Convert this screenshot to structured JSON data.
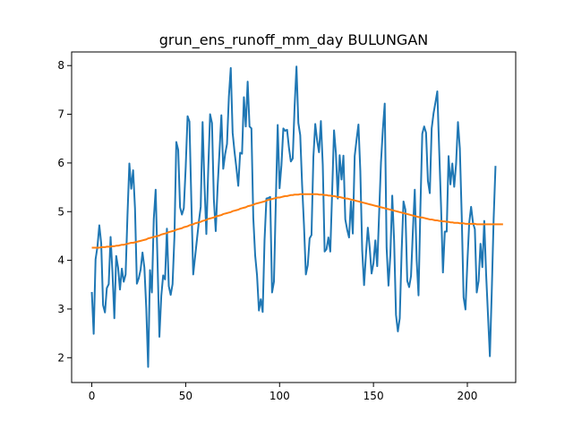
{
  "chart_data": {
    "type": "line",
    "title": "grun_ens_runoff_mm_day BULUNGAN",
    "xlabel": "",
    "ylabel": "",
    "xlim": [
      -10.75,
      225.75
    ],
    "ylim": [
      1.49,
      8.28
    ],
    "x_ticks": [
      0,
      50,
      100,
      150,
      200
    ],
    "y_ticks": [
      2,
      3,
      4,
      5,
      6,
      7,
      8
    ],
    "grid": false,
    "series": [
      {
        "color": "#1f77b4",
        "values": [
          3.35,
          2.49,
          4.02,
          4.28,
          4.72,
          4.35,
          3.08,
          2.93,
          3.43,
          3.51,
          4.48,
          3.75,
          2.81,
          4.09,
          3.85,
          3.4,
          3.83,
          3.56,
          3.71,
          4.93,
          5.99,
          5.47,
          5.85,
          5.07,
          3.52,
          3.63,
          3.81,
          4.16,
          3.85,
          3.02,
          1.81,
          3.8,
          3.34,
          4.85,
          5.45,
          3.97,
          2.43,
          3.27,
          3.69,
          3.61,
          4.65,
          3.47,
          3.29,
          3.51,
          4.48,
          6.43,
          6.27,
          5.09,
          4.94,
          5.07,
          5.91,
          6.96,
          6.85,
          5.23,
          3.71,
          4.07,
          4.43,
          4.79,
          5.1,
          6.84,
          5.55,
          4.54,
          5.86,
          7.0,
          6.82,
          5.25,
          4.6,
          5.51,
          6.24,
          6.98,
          5.88,
          6.18,
          6.39,
          7.36,
          7.95,
          6.62,
          6.23,
          5.9,
          5.53,
          6.21,
          6.19,
          7.35,
          6.75,
          7.67,
          6.75,
          6.71,
          4.87,
          4.1,
          3.69,
          2.97,
          3.2,
          2.94,
          4.42,
          5.27,
          5.28,
          5.3,
          3.34,
          3.56,
          5.21,
          6.78,
          5.48,
          5.96,
          6.71,
          6.66,
          6.68,
          6.31,
          6.03,
          6.09,
          7.16,
          7.98,
          6.82,
          6.57,
          5.55,
          4.72,
          3.71,
          3.9,
          4.45,
          4.52,
          6.12,
          6.8,
          6.46,
          6.22,
          6.86,
          5.96,
          4.18,
          4.23,
          4.47,
          4.18,
          5.4,
          6.67,
          6.2,
          5.27,
          6.16,
          5.66,
          6.15,
          4.84,
          4.63,
          4.47,
          5.21,
          4.55,
          6.14,
          6.48,
          6.79,
          5.84,
          4.2,
          3.49,
          4.12,
          4.67,
          4.26,
          3.73,
          3.94,
          4.41,
          3.88,
          4.94,
          6.01,
          6.69,
          7.22,
          4.26,
          3.48,
          4.11,
          5.33,
          4.4,
          2.88,
          2.54,
          2.81,
          4.18,
          5.21,
          5.04,
          3.58,
          3.45,
          3.68,
          4.61,
          5.45,
          4.01,
          3.28,
          5.08,
          6.6,
          6.75,
          6.62,
          5.63,
          5.38,
          6.71,
          7.02,
          7.24,
          7.47,
          6.27,
          5.1,
          3.75,
          4.59,
          4.59,
          6.14,
          5.56,
          5.99,
          5.51,
          5.98,
          6.84,
          6.3,
          4.92,
          3.24,
          2.99,
          3.95,
          4.77,
          5.1,
          4.77,
          4.64,
          3.34,
          3.58,
          4.34,
          3.86,
          4.81,
          3.71,
          2.87,
          2.03,
          3.36,
          4.85,
          5.94
        ]
      },
      {
        "color": "#ff7f0e",
        "values": [
          4.26,
          4.26,
          4.26,
          4.26,
          4.26,
          4.27,
          4.27,
          4.27,
          4.28,
          4.28,
          4.28,
          4.29,
          4.29,
          4.3,
          4.3,
          4.31,
          4.32,
          4.32,
          4.33,
          4.34,
          4.35,
          4.36,
          4.36,
          4.37,
          4.38,
          4.39,
          4.4,
          4.41,
          4.42,
          4.43,
          4.45,
          4.46,
          4.47,
          4.48,
          4.49,
          4.5,
          4.51,
          4.53,
          4.54,
          4.55,
          4.56,
          4.58,
          4.59,
          4.6,
          4.61,
          4.63,
          4.64,
          4.65,
          4.66,
          4.68,
          4.69,
          4.7,
          4.72,
          4.73,
          4.74,
          4.76,
          4.77,
          4.78,
          4.79,
          4.81,
          4.82,
          4.83,
          4.85,
          4.86,
          4.87,
          4.88,
          4.9,
          4.91,
          4.92,
          4.93,
          4.95,
          4.96,
          4.97,
          4.98,
          4.99,
          5.01,
          5.02,
          5.03,
          5.04,
          5.06,
          5.07,
          5.08,
          5.09,
          5.11,
          5.12,
          5.13,
          5.14,
          5.16,
          5.17,
          5.18,
          5.19,
          5.2,
          5.21,
          5.23,
          5.24,
          5.25,
          5.26,
          5.27,
          5.28,
          5.29,
          5.29,
          5.3,
          5.31,
          5.32,
          5.32,
          5.33,
          5.34,
          5.34,
          5.35,
          5.35,
          5.35,
          5.36,
          5.36,
          5.36,
          5.36,
          5.36,
          5.36,
          5.36,
          5.36,
          5.36,
          5.36,
          5.35,
          5.35,
          5.35,
          5.34,
          5.34,
          5.33,
          5.33,
          5.32,
          5.32,
          5.31,
          5.3,
          5.3,
          5.29,
          5.28,
          5.27,
          5.27,
          5.26,
          5.25,
          5.24,
          5.23,
          5.22,
          5.21,
          5.2,
          5.19,
          5.18,
          5.17,
          5.16,
          5.15,
          5.14,
          5.13,
          5.12,
          5.11,
          5.1,
          5.09,
          5.08,
          5.07,
          5.06,
          5.05,
          5.04,
          5.03,
          5.02,
          5.01,
          5.0,
          4.99,
          4.98,
          4.97,
          4.96,
          4.95,
          4.94,
          4.93,
          4.92,
          4.91,
          4.9,
          4.89,
          4.88,
          4.88,
          4.87,
          4.86,
          4.85,
          4.84,
          4.84,
          4.83,
          4.82,
          4.82,
          4.81,
          4.81,
          4.8,
          4.8,
          4.79,
          4.79,
          4.78,
          4.78,
          4.77,
          4.77,
          4.77,
          4.76,
          4.76,
          4.76,
          4.75,
          4.75,
          4.75,
          4.75,
          4.75,
          4.75,
          4.74,
          4.74,
          4.74,
          4.74,
          4.74,
          4.74,
          4.74,
          4.74,
          4.74,
          4.74,
          4.74,
          4.74,
          4.74,
          4.74,
          4.74
        ]
      }
    ]
  }
}
